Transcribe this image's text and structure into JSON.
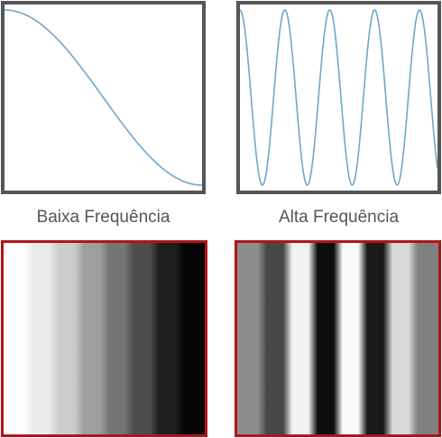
{
  "labels": {
    "low": "Baixa Frequência",
    "high": "Alta Frequência"
  },
  "colors": {
    "plot_border": "#555555",
    "stripe_border": "#b31414",
    "curve": "#6fa7c8"
  },
  "panels": {
    "low": {
      "wave": {
        "cycles": 0.5,
        "phase": "cosine"
      },
      "stripe_levels": [
        1.0,
        0.92,
        0.8,
        0.62,
        0.46,
        0.3,
        0.12,
        0.02
      ]
    },
    "high": {
      "wave": {
        "cycles": 4.4,
        "phase": "cosine"
      },
      "stripe_levels": [
        0.55,
        0.28,
        0.95,
        0.05,
        0.98,
        0.1,
        0.85,
        0.5
      ]
    }
  }
}
